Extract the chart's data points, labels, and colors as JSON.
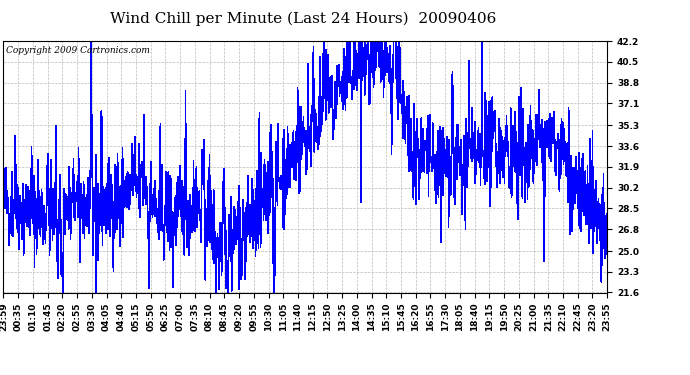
{
  "title": "Wind Chill per Minute (Last 24 Hours)  20090406",
  "copyright_text": "Copyright 2009 Cartronics.com",
  "line_color": "#0000FF",
  "bg_color": "#FFFFFF",
  "plot_bg_color": "#FFFFFF",
  "grid_color": "#BBBBBB",
  "yticks": [
    21.6,
    23.3,
    25.0,
    26.8,
    28.5,
    30.2,
    31.9,
    33.6,
    35.3,
    37.1,
    38.8,
    40.5,
    42.2
  ],
  "ylim": [
    21.6,
    42.2
  ],
  "xtick_labels": [
    "23:59",
    "00:35",
    "01:10",
    "01:45",
    "02:20",
    "02:55",
    "03:30",
    "04:05",
    "04:40",
    "05:15",
    "05:50",
    "06:25",
    "07:00",
    "07:35",
    "08:10",
    "08:45",
    "09:20",
    "09:55",
    "10:30",
    "11:05",
    "11:40",
    "12:15",
    "12:50",
    "13:25",
    "14:00",
    "14:35",
    "15:10",
    "15:45",
    "16:20",
    "16:55",
    "17:30",
    "18:05",
    "18:40",
    "19:15",
    "19:50",
    "20:25",
    "21:00",
    "21:35",
    "22:10",
    "22:45",
    "23:20",
    "23:55"
  ],
  "title_fontsize": 11,
  "tick_fontsize": 6.5,
  "copyright_fontsize": 6.5
}
